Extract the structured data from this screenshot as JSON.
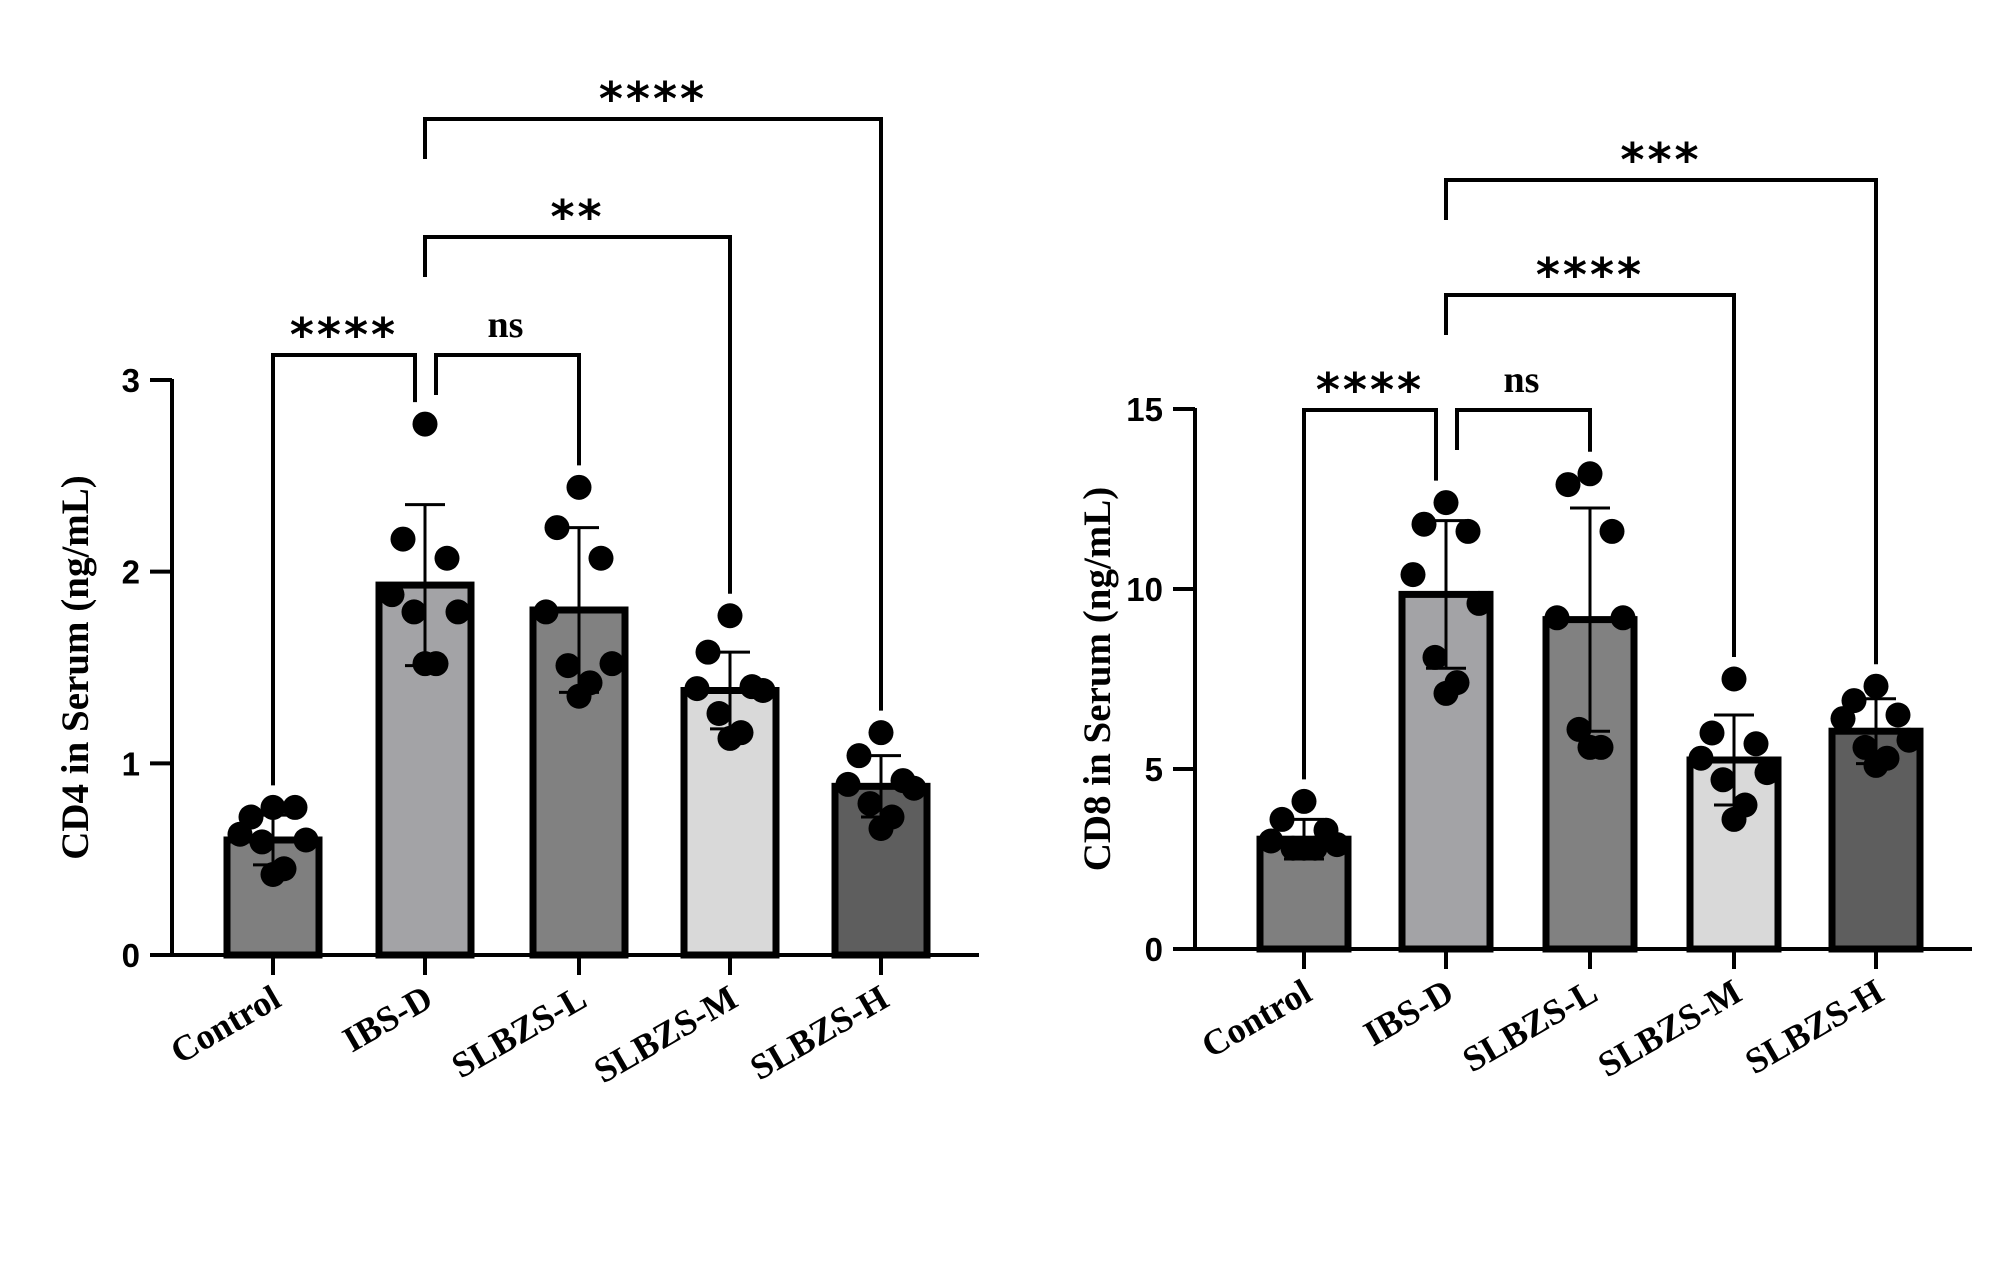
{
  "colors": {
    "Control": "#7f7f7f",
    "IBS-D": "#a3a3a6",
    "SLBZS-L": "#818181",
    "SLBZS-M": "#d9d9d9",
    "SLBZS-H": "#5e5e5e",
    "ink": "#000000"
  },
  "chart_data": [
    {
      "type": "bar",
      "title": "",
      "ylabel": "CD4 in Serum (ng/mL)",
      "xlabel": "",
      "ylim": [
        0,
        3
      ],
      "yticks": [
        0,
        1,
        2,
        3
      ],
      "grid": false,
      "categories": [
        "Control",
        "IBS-D",
        "SLBZS-L",
        "SLBZS-M",
        "SLBZS-H"
      ],
      "values": [
        0.6,
        1.93,
        1.8,
        1.38,
        0.88
      ],
      "errors": [
        0.13,
        0.42,
        0.43,
        0.2,
        0.16
      ],
      "points": [
        [
          0.77,
          0.72,
          0.77,
          0.63,
          0.6,
          0.59,
          0.45,
          0.42
        ],
        [
          2.77,
          2.17,
          2.07,
          1.88,
          1.79,
          1.79,
          1.52,
          1.52
        ],
        [
          2.44,
          2.23,
          2.07,
          1.79,
          1.52,
          1.51,
          1.42,
          1.35
        ],
        [
          1.77,
          1.58,
          1.4,
          1.39,
          1.38,
          1.26,
          1.16,
          1.13
        ],
        [
          1.16,
          1.04,
          0.91,
          0.89,
          0.87,
          0.79,
          0.72,
          0.66
        ]
      ],
      "comparisons": [
        {
          "from": "Control",
          "to": "IBS-D",
          "label": "****",
          "level": 0
        },
        {
          "from": "IBS-D",
          "to": "SLBZS-L",
          "label": "ns",
          "level": 0
        },
        {
          "from": "IBS-D",
          "to": "SLBZS-M",
          "label": "**",
          "level": 1
        },
        {
          "from": "IBS-D",
          "to": "SLBZS-H",
          "label": "****",
          "level": 2
        }
      ]
    },
    {
      "type": "bar",
      "title": "",
      "ylabel": "CD8 in Serum (ng/mL)",
      "xlabel": "",
      "ylim": [
        0,
        15
      ],
      "yticks": [
        0,
        5,
        10,
        15
      ],
      "grid": false,
      "categories": [
        "Control",
        "IBS-D",
        "SLBZS-L",
        "SLBZS-M",
        "SLBZS-H"
      ],
      "values": [
        3.05,
        9.85,
        9.15,
        5.25,
        6.05
      ],
      "errors": [
        0.55,
        2.05,
        3.1,
        1.25,
        0.9
      ],
      "points": [
        [
          4.1,
          3.6,
          3.3,
          3.0,
          2.9,
          2.8,
          2.8,
          2.8
        ],
        [
          12.4,
          11.8,
          11.6,
          10.4,
          9.6,
          8.1,
          7.4,
          7.1
        ],
        [
          13.2,
          12.9,
          11.6,
          9.2,
          9.2,
          6.1,
          5.6,
          5.6
        ],
        [
          7.5,
          6.0,
          5.7,
          5.3,
          4.9,
          4.7,
          4.0,
          3.6
        ],
        [
          7.3,
          6.9,
          6.5,
          6.4,
          5.8,
          5.6,
          5.3,
          5.1
        ]
      ],
      "comparisons": [
        {
          "from": "Control",
          "to": "IBS-D",
          "label": "****",
          "level": 0
        },
        {
          "from": "IBS-D",
          "to": "SLBZS-L",
          "label": "ns",
          "level": 0
        },
        {
          "from": "IBS-D",
          "to": "SLBZS-M",
          "label": "****",
          "level": 1
        },
        {
          "from": "IBS-D",
          "to": "SLBZS-H",
          "label": "***",
          "level": 2
        }
      ]
    }
  ]
}
